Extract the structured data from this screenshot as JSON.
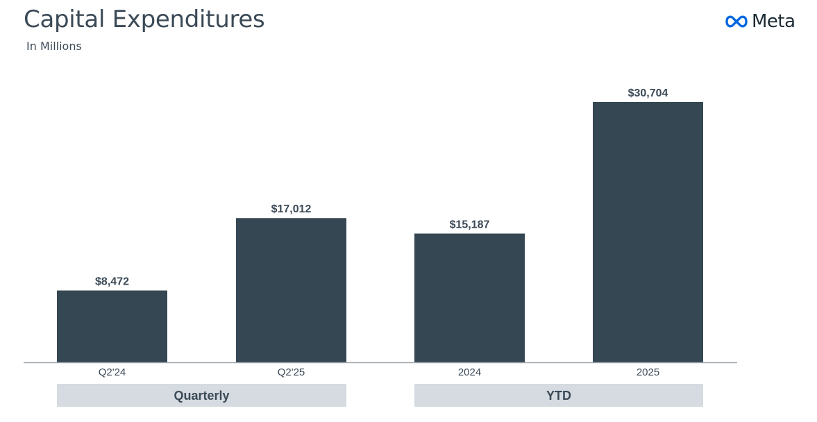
{
  "header": {
    "title": "Capital Expenditures",
    "subtitle": "In Millions",
    "logo_text": "Meta",
    "logo_icon": "meta-infinity-icon"
  },
  "colors": {
    "bar": "#354752",
    "axis": "#a0a7ad",
    "group_band": "#d5dbe0",
    "text": "#3c4a57",
    "logo_blue": "#0668e1"
  },
  "chart_data": {
    "type": "bar",
    "title": "Capital Expenditures",
    "subtitle": "In Millions",
    "categories": [
      "Q2'24",
      "Q2'25",
      "2024",
      "2025"
    ],
    "values": [
      8472,
      17012,
      15187,
      30704
    ],
    "data_labels": [
      "$8,472",
      "$17,012",
      "$15,187",
      "$30,704"
    ],
    "groups": [
      {
        "label": "Quarterly",
        "categories": [
          "Q2'24",
          "Q2'25"
        ]
      },
      {
        "label": "YTD",
        "categories": [
          "2024",
          "2025"
        ]
      }
    ],
    "xlabel": "",
    "ylabel": "",
    "ylim": [
      0,
      30704
    ],
    "grid": false,
    "legend": "none"
  }
}
